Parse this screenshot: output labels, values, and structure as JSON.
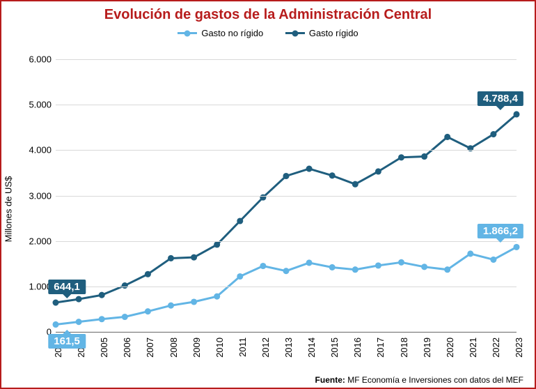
{
  "title": "Evolución de gastos de la Administración Central",
  "title_color": "#b71c1c",
  "title_fontsize": 20,
  "frame_border_color": "#b71c1c",
  "background_color": "#ffffff",
  "legend": {
    "items": [
      {
        "label": "Gasto no rígido",
        "color": "#62b5e5"
      },
      {
        "label": "Gasto rígido",
        "color": "#1f5e7e"
      }
    ]
  },
  "ylabel": "Millones de US$",
  "label_fontsize": 13,
  "grid_color": "#d9d9d9",
  "axis_color": "#666666",
  "marker_radius": 4.5,
  "line_width": 3,
  "chart": {
    "type": "line",
    "ylim": [
      0,
      6200
    ],
    "yticks": [
      0,
      1000,
      2000,
      3000,
      4000,
      5000,
      6000
    ],
    "ytick_labels": [
      "0",
      "1.000",
      "2.000",
      "3.000",
      "4.000",
      "5.000",
      "6.000"
    ],
    "categories": [
      "2003",
      "2004",
      "2005",
      "2006",
      "2007",
      "2008",
      "2009",
      "2010",
      "2011",
      "2012",
      "2013",
      "2014",
      "2015",
      "2016",
      "2017",
      "2018",
      "2019",
      "2020",
      "2021",
      "2022",
      "2023"
    ],
    "series": [
      {
        "name": "Gasto rígido",
        "color": "#1f5e7e",
        "values": [
          644.1,
          720,
          810,
          1020,
          1270,
          1620,
          1640,
          1920,
          2440,
          2960,
          3430,
          3590,
          3440,
          3250,
          3530,
          3840,
          3860,
          4290,
          4040,
          4350,
          4788.4
        ]
      },
      {
        "name": "Gasto no rígido",
        "color": "#62b5e5",
        "values": [
          161.5,
          220,
          280,
          330,
          450,
          580,
          660,
          780,
          1220,
          1450,
          1340,
          1520,
          1420,
          1370,
          1460,
          1530,
          1430,
          1370,
          1720,
          1590,
          1866.2
        ]
      }
    ],
    "callouts": [
      {
        "series": 0,
        "index": 0,
        "text": "644,1",
        "position": "above",
        "dx_label_anchor": "left"
      },
      {
        "series": 1,
        "index": 0,
        "text": "161,5",
        "position": "below",
        "dx_label_anchor": "left"
      },
      {
        "series": 0,
        "index": 20,
        "text": "4.788,4",
        "position": "above",
        "dx_label_anchor": "right"
      },
      {
        "series": 1,
        "index": 20,
        "text": "1.866,2",
        "position": "above",
        "dx_label_anchor": "right"
      }
    ]
  },
  "source_prefix": "Fuente:",
  "source_text": "MF Economía e Inversiones con datos del MEF"
}
